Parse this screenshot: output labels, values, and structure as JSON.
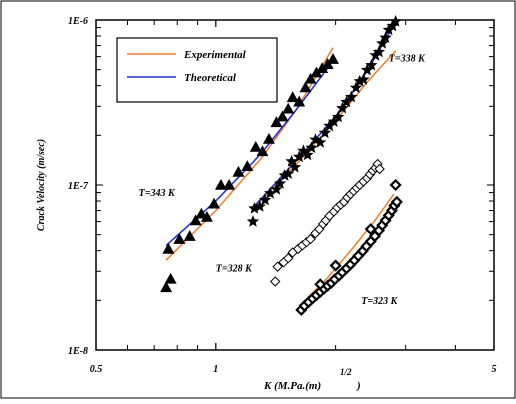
{
  "chart_data": {
    "type": "scatter",
    "title": "",
    "xlabel": "K (M.Pa.(m)",
    "xlabel_sup": "1/2",
    "xlabel_close": ")",
    "ylabel": "Crack Velocity (m/sec)",
    "x_scale": "log",
    "y_scale": "log",
    "xlim": [
      0.5,
      5
    ],
    "ylim": [
      1e-08,
      1e-06
    ],
    "x_tick_labels": [
      {
        "value": 0.5,
        "label": "0.5"
      },
      {
        "value": 1,
        "label": "1"
      },
      {
        "value": 5,
        "label": "5"
      }
    ],
    "y_tick_labels": [
      {
        "value": 1e-08,
        "label": "1E-8"
      },
      {
        "value": 1e-07,
        "label": "1E-7"
      },
      {
        "value": 1e-06,
        "label": "1E-6"
      }
    ],
    "grid": false,
    "legend_position": "top-left",
    "legend": [
      {
        "label": "Experimental",
        "color": "#f07d2a"
      },
      {
        "label": "Theoretical",
        "color": "#1c2bd0"
      }
    ],
    "colors": {
      "experimental": "#f07d2a",
      "theoretical": "#1c2bd0",
      "markers": "#000000"
    },
    "annotations": [
      {
        "text": "T=343 K",
        "x": 0.64,
        "y": 8.6e-08
      },
      {
        "text": "T=338 K",
        "x": 2.72,
        "y": 5.6e-07
      },
      {
        "text": "T=328 K",
        "x": 1.0,
        "y": 3e-08
      },
      {
        "text": "T=323 K",
        "x": 2.32,
        "y": 1.9e-08
      }
    ],
    "series": [
      {
        "temperature": "T=343 K",
        "marker": "triangle",
        "points": [
          {
            "x": 0.75,
            "y": 2.4e-08
          },
          {
            "x": 0.77,
            "y": 2.7e-08
          },
          {
            "x": 0.76,
            "y": 4.1e-08
          },
          {
            "x": 0.81,
            "y": 4.7e-08
          },
          {
            "x": 0.86,
            "y": 4.9e-08
          },
          {
            "x": 0.89,
            "y": 6.1e-08
          },
          {
            "x": 0.92,
            "y": 6.7e-08
          },
          {
            "x": 0.95,
            "y": 6.4e-08
          },
          {
            "x": 0.99,
            "y": 7.7e-08
          },
          {
            "x": 1.03,
            "y": 1e-07
          },
          {
            "x": 1.08,
            "y": 1e-07
          },
          {
            "x": 1.14,
            "y": 1.2e-07
          },
          {
            "x": 1.2,
            "y": 1.3e-07
          },
          {
            "x": 1.26,
            "y": 1.7e-07
          },
          {
            "x": 1.31,
            "y": 1.6e-07
          },
          {
            "x": 1.36,
            "y": 1.9e-07
          },
          {
            "x": 1.42,
            "y": 2.4e-07
          },
          {
            "x": 1.47,
            "y": 2.6e-07
          },
          {
            "x": 1.52,
            "y": 2.9e-07
          },
          {
            "x": 1.56,
            "y": 3.4e-07
          },
          {
            "x": 1.62,
            "y": 3.2e-07
          },
          {
            "x": 1.68,
            "y": 3.9e-07
          },
          {
            "x": 1.73,
            "y": 4.4e-07
          },
          {
            "x": 1.79,
            "y": 4.8e-07
          },
          {
            "x": 1.85,
            "y": 5.1e-07
          },
          {
            "x": 1.91,
            "y": 5.4e-07
          },
          {
            "x": 1.97,
            "y": 5.8e-07
          }
        ],
        "experimental_fit": [
          {
            "x": 0.75,
            "y": 3.5e-08
          },
          {
            "x": 1.0,
            "y": 7e-08
          },
          {
            "x": 1.3,
            "y": 1.45e-07
          },
          {
            "x": 1.6,
            "y": 2.9e-07
          },
          {
            "x": 1.97,
            "y": 6.8e-07
          }
        ],
        "theoretical_fit": [
          {
            "x": 0.75,
            "y": 4.3e-08
          },
          {
            "x": 1.0,
            "y": 8e-08
          },
          {
            "x": 1.3,
            "y": 1.55e-07
          },
          {
            "x": 1.6,
            "y": 2.9e-07
          },
          {
            "x": 1.92,
            "y": 5.2e-07
          }
        ]
      },
      {
        "temperature": "T=338 K",
        "marker": "star",
        "points": [
          {
            "x": 1.24,
            "y": 6e-08
          },
          {
            "x": 1.25,
            "y": 7.2e-08
          },
          {
            "x": 1.29,
            "y": 7.4e-08
          },
          {
            "x": 1.33,
            "y": 8.1e-08
          },
          {
            "x": 1.37,
            "y": 8.9e-08
          },
          {
            "x": 1.42,
            "y": 9.4e-08
          },
          {
            "x": 1.45,
            "y": 1.02e-07
          },
          {
            "x": 1.49,
            "y": 1.14e-07
          },
          {
            "x": 1.52,
            "y": 1.17e-07
          },
          {
            "x": 1.55,
            "y": 1.39e-07
          },
          {
            "x": 1.58,
            "y": 1.28e-07
          },
          {
            "x": 1.62,
            "y": 1.48e-07
          },
          {
            "x": 1.66,
            "y": 1.61e-07
          },
          {
            "x": 1.7,
            "y": 1.52e-07
          },
          {
            "x": 1.74,
            "y": 1.68e-07
          },
          {
            "x": 1.78,
            "y": 1.88e-07
          },
          {
            "x": 1.83,
            "y": 1.81e-07
          },
          {
            "x": 1.88,
            "y": 2.07e-07
          },
          {
            "x": 1.93,
            "y": 2.28e-07
          },
          {
            "x": 1.98,
            "y": 2.42e-07
          },
          {
            "x": 2.03,
            "y": 2.58e-07
          },
          {
            "x": 2.08,
            "y": 2.92e-07
          },
          {
            "x": 2.13,
            "y": 3.18e-07
          },
          {
            "x": 2.19,
            "y": 3.41e-07
          },
          {
            "x": 2.25,
            "y": 3.88e-07
          },
          {
            "x": 2.3,
            "y": 4.25e-07
          },
          {
            "x": 2.35,
            "y": 4.35e-07
          },
          {
            "x": 2.4,
            "y": 4.97e-07
          },
          {
            "x": 2.46,
            "y": 5.32e-07
          },
          {
            "x": 2.52,
            "y": 6.1e-07
          },
          {
            "x": 2.57,
            "y": 6.4e-07
          },
          {
            "x": 2.62,
            "y": 7.2e-07
          },
          {
            "x": 2.67,
            "y": 7.8e-07
          },
          {
            "x": 2.72,
            "y": 8.7e-07
          },
          {
            "x": 2.78,
            "y": 9.2e-07
          },
          {
            "x": 2.83,
            "y": 9.8e-07
          }
        ],
        "experimental_fit": [
          {
            "x": 1.24,
            "y": 7.2e-08
          },
          {
            "x": 1.6,
            "y": 1.35e-07
          },
          {
            "x": 2.0,
            "y": 2.45e-07
          },
          {
            "x": 2.4,
            "y": 4.2e-07
          },
          {
            "x": 2.83,
            "y": 6.5e-07
          }
        ],
        "theoretical_fit": [
          {
            "x": 1.24,
            "y": 7.3e-08
          },
          {
            "x": 1.6,
            "y": 1.42e-07
          },
          {
            "x": 2.0,
            "y": 2.6e-07
          },
          {
            "x": 2.4,
            "y": 4.9e-07
          },
          {
            "x": 2.8,
            "y": 9.3e-07
          }
        ]
      },
      {
        "temperature": "T=328 K",
        "marker": "diamond-open",
        "points": [
          {
            "x": 1.41,
            "y": 2.6e-08
          },
          {
            "x": 1.43,
            "y": 3.2e-08
          },
          {
            "x": 1.48,
            "y": 3.4e-08
          },
          {
            "x": 1.52,
            "y": 3.6e-08
          },
          {
            "x": 1.56,
            "y": 3.9e-08
          },
          {
            "x": 1.61,
            "y": 4.1e-08
          },
          {
            "x": 1.65,
            "y": 4.3e-08
          },
          {
            "x": 1.69,
            "y": 4.5e-08
          },
          {
            "x": 1.73,
            "y": 4.7e-08
          },
          {
            "x": 1.78,
            "y": 5.1e-08
          },
          {
            "x": 1.82,
            "y": 5.4e-08
          },
          {
            "x": 1.86,
            "y": 5.8e-08
          },
          {
            "x": 1.89,
            "y": 6.1e-08
          },
          {
            "x": 1.93,
            "y": 6.5e-08
          },
          {
            "x": 1.98,
            "y": 6.9e-08
          },
          {
            "x": 2.02,
            "y": 7.3e-08
          },
          {
            "x": 2.06,
            "y": 7.6e-08
          },
          {
            "x": 2.1,
            "y": 7.9e-08
          },
          {
            "x": 2.14,
            "y": 8.4e-08
          },
          {
            "x": 2.18,
            "y": 8.8e-08
          },
          {
            "x": 2.22,
            "y": 9.2e-08
          },
          {
            "x": 2.26,
            "y": 9.6e-08
          },
          {
            "x": 2.3,
            "y": 1e-07
          },
          {
            "x": 2.35,
            "y": 1.05e-07
          },
          {
            "x": 2.4,
            "y": 1.1e-07
          },
          {
            "x": 2.44,
            "y": 1.16e-07
          },
          {
            "x": 2.48,
            "y": 1.22e-07
          },
          {
            "x": 2.52,
            "y": 1.27e-07
          },
          {
            "x": 2.55,
            "y": 1.34e-07
          },
          {
            "x": 2.58,
            "y": 1.25e-07
          }
        ],
        "experimental_fit": [
          {
            "x": 1.43,
            "y": 3.1e-08
          },
          {
            "x": 1.75,
            "y": 4.8e-08
          },
          {
            "x": 2.1,
            "y": 7.8e-08
          },
          {
            "x": 2.58,
            "y": 1.35e-07
          }
        ],
        "theoretical_fit": [
          {
            "x": 1.43,
            "y": 3.2e-08
          },
          {
            "x": 1.75,
            "y": 4.9e-08
          },
          {
            "x": 2.1,
            "y": 7.9e-08
          },
          {
            "x": 2.58,
            "y": 1.3e-07
          }
        ]
      },
      {
        "temperature": "T=323 K",
        "marker": "diamond-filled",
        "points": [
          {
            "x": 1.64,
            "y": 1.75e-08
          },
          {
            "x": 1.67,
            "y": 1.85e-08
          },
          {
            "x": 1.71,
            "y": 1.95e-08
          },
          {
            "x": 1.75,
            "y": 2.05e-08
          },
          {
            "x": 1.79,
            "y": 2.15e-08
          },
          {
            "x": 1.83,
            "y": 2.25e-08
          },
          {
            "x": 1.87,
            "y": 2.35e-08
          },
          {
            "x": 1.91,
            "y": 2.45e-08
          },
          {
            "x": 1.95,
            "y": 2.55e-08
          },
          {
            "x": 1.99,
            "y": 2.68e-08
          },
          {
            "x": 2.04,
            "y": 2.82e-08
          },
          {
            "x": 2.08,
            "y": 2.96e-08
          },
          {
            "x": 2.13,
            "y": 3.12e-08
          },
          {
            "x": 2.18,
            "y": 3.3e-08
          },
          {
            "x": 2.23,
            "y": 3.5e-08
          },
          {
            "x": 2.28,
            "y": 3.72e-08
          },
          {
            "x": 2.34,
            "y": 3.98e-08
          },
          {
            "x": 2.39,
            "y": 4.25e-08
          },
          {
            "x": 2.45,
            "y": 4.55e-08
          },
          {
            "x": 2.51,
            "y": 4.9e-08
          },
          {
            "x": 2.57,
            "y": 5.3e-08
          },
          {
            "x": 2.62,
            "y": 5.7e-08
          },
          {
            "x": 2.67,
            "y": 6.1e-08
          },
          {
            "x": 2.72,
            "y": 6.55e-08
          },
          {
            "x": 2.77,
            "y": 7e-08
          },
          {
            "x": 2.81,
            "y": 7.5e-08
          },
          {
            "x": 2.85,
            "y": 7.9e-08
          },
          {
            "x": 1.83,
            "y": 2.5e-08
          },
          {
            "x": 2.0,
            "y": 3.25e-08
          },
          {
            "x": 2.45,
            "y": 5.4e-08
          },
          {
            "x": 2.83,
            "y": 1e-07
          }
        ],
        "experimental_fit": [
          {
            "x": 1.64,
            "y": 1.9e-08
          },
          {
            "x": 1.9,
            "y": 2.7e-08
          },
          {
            "x": 2.2,
            "y": 4.1e-08
          },
          {
            "x": 2.5,
            "y": 6e-08
          },
          {
            "x": 2.8,
            "y": 8.8e-08
          }
        ],
        "theoretical_fit": [
          {
            "x": 1.64,
            "y": 1.8e-08
          },
          {
            "x": 1.9,
            "y": 2.45e-08
          },
          {
            "x": 2.2,
            "y": 3.45e-08
          },
          {
            "x": 2.5,
            "y": 5e-08
          },
          {
            "x": 2.85,
            "y": 7.9e-08
          }
        ]
      }
    ]
  }
}
